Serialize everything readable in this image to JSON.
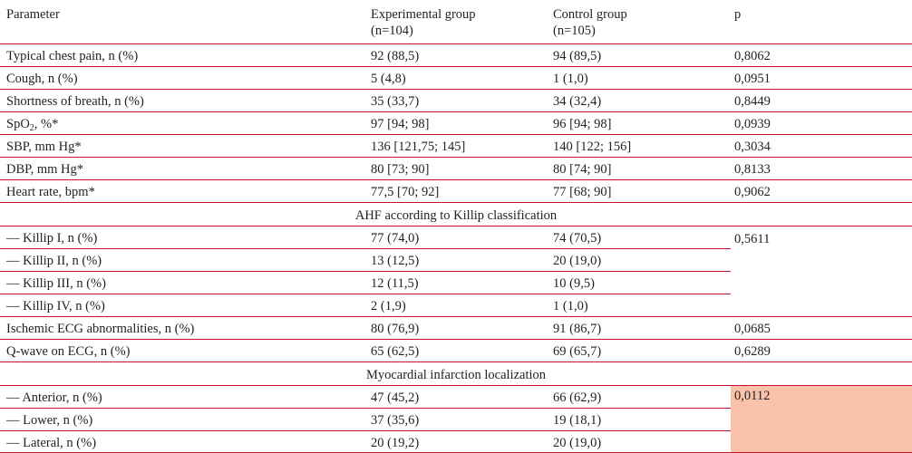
{
  "header": {
    "parameter": "Parameter",
    "experimental": "Experimental group",
    "experimental_n": "(n=104)",
    "control": "Control group",
    "control_n": "(n=105)",
    "p": "p"
  },
  "rows_top": [
    {
      "parameter": "Typical chest pain, n (%)",
      "exp": "92 (88,5)",
      "ctrl": "94 (89,5)",
      "p": "0,8062"
    },
    {
      "parameter": "Cough, n (%)",
      "exp": "5 (4,8)",
      "ctrl": "1 (1,0)",
      "p": "0,0951"
    },
    {
      "parameter": "Shortness of breath, n (%)",
      "exp": "35 (33,7)",
      "ctrl": "34 (32,4)",
      "p": "0,8449"
    },
    {
      "parameter_main": "SpO",
      "parameter_sub": "2",
      "parameter_rest": ", %*",
      "exp": "97 [94; 98]",
      "ctrl": "96 [94; 98]",
      "p": "0,0939"
    },
    {
      "parameter": "SBP, mm Hg*",
      "exp": "136 [121,75; 145]",
      "ctrl": "140 [122; 156]",
      "p": "0,3034"
    },
    {
      "parameter": "DBP, mm Hg*",
      "exp": "80 [73; 90]",
      "ctrl": "80 [74; 90]",
      "p": "0,8133"
    },
    {
      "parameter": "Heart rate, bpm*",
      "exp": "77,5 [70; 92]",
      "ctrl": "77 [68; 90]",
      "p": "0,9062"
    }
  ],
  "section_killip": "AHF according to Killip classification",
  "killip_rows": [
    {
      "parameter": "— Killip I, n (%)",
      "exp": "77 (74,0)",
      "ctrl": "74 (70,5)"
    },
    {
      "parameter": "— Killip II, n (%)",
      "exp": "13 (12,5)",
      "ctrl": "20 (19,0)"
    },
    {
      "parameter": "— Killip III, n (%)",
      "exp": "12 (11,5)",
      "ctrl": "10 (9,5)"
    },
    {
      "parameter": "— Killip IV, n (%)",
      "exp": "2 (1,9)",
      "ctrl": "1 (1,0)"
    }
  ],
  "killip_p": "0,5611",
  "rows_mid": [
    {
      "parameter": "Ischemic ECG abnormalities, n (%)",
      "exp": "80 (76,9)",
      "ctrl": "91 (86,7)",
      "p": "0,0685"
    },
    {
      "parameter": "Q-wave on ECG, n (%)",
      "exp": "65 (62,5)",
      "ctrl": "69 (65,7)",
      "p": "0,6289"
    }
  ],
  "section_mi": "Myocardial infarction localization",
  "mi_rows": [
    {
      "parameter": "— Anterior, n (%)",
      "exp": "47 (45,2)",
      "ctrl": "66 (62,9)"
    },
    {
      "parameter": "— Lower, n (%)",
      "exp": "37 (35,6)",
      "ctrl": "19 (18,1)"
    },
    {
      "parameter": "— Lateral, n (%)",
      "exp": "20 (19,2)",
      "ctrl": "20 (19,0)"
    }
  ],
  "mi_p": "0,0112",
  "colors": {
    "rule": "#c8102e",
    "highlight": "#f9c3ab",
    "text": "#231f20"
  }
}
